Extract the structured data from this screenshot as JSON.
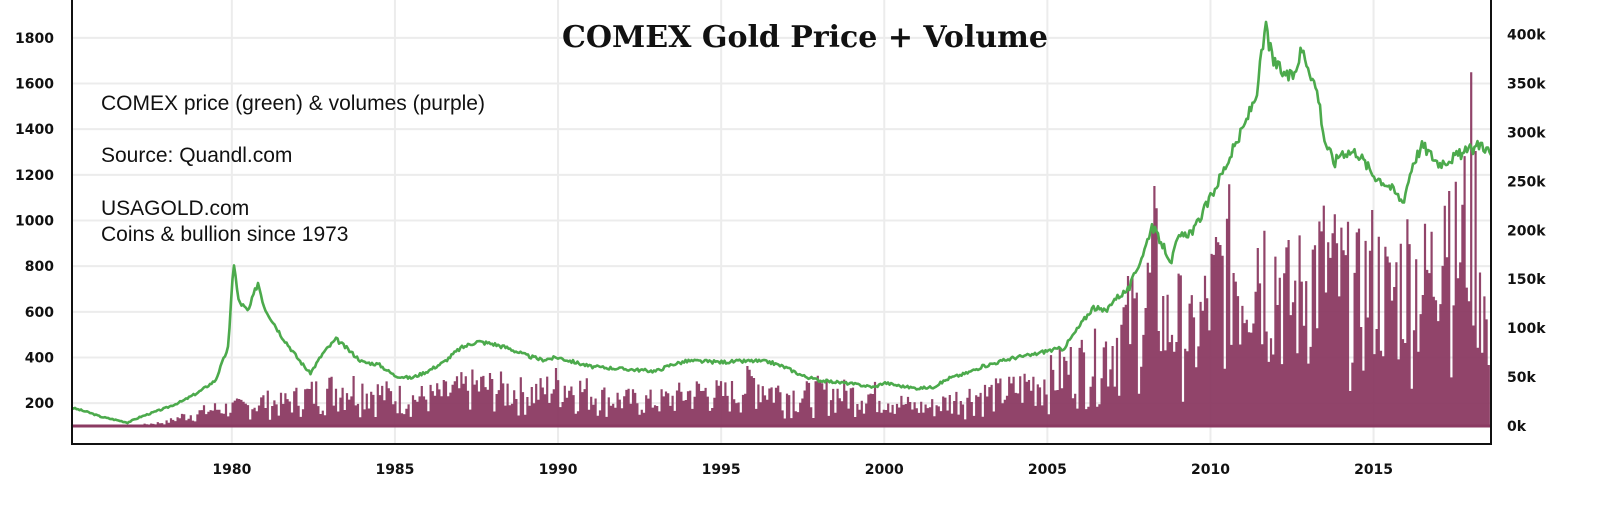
{
  "chart_data": {
    "type": "line",
    "title": "COMEX Gold Price + Volume",
    "annotations": [
      "COMEX price (green) & volumes (purple)",
      "Source:  Quandl.com",
      "USAGOLD.com",
      "Coins & bullion since 1973"
    ],
    "x_ticks": [
      "1980",
      "1985",
      "1990",
      "1995",
      "2000",
      "2005",
      "2010",
      "2015"
    ],
    "y_left_ticks": [
      "200",
      "400",
      "600",
      "800",
      "1000",
      "1200",
      "1400",
      "1600",
      "1800"
    ],
    "y_right_ticks": [
      "0k",
      "50k",
      "100k",
      "150k",
      "200k",
      "250k",
      "300k",
      "350k",
      "400k"
    ],
    "xlim": [
      1975.1,
      2018.6
    ],
    "ylim_left": [
      100,
      1900
    ],
    "ylim_right": [
      0,
      420000
    ],
    "grid": true,
    "legend": "none",
    "series": [
      {
        "color": "#4caa4c",
        "axis": "left",
        "x": [
          1975.1,
          1975.6,
          1976.0,
          1976.5,
          1976.8,
          1977.2,
          1977.6,
          1978.0,
          1978.5,
          1979.0,
          1979.5,
          1979.9,
          1980.05,
          1980.2,
          1980.5,
          1980.8,
          1981.0,
          1981.5,
          1982.0,
          1982.4,
          1982.8,
          1983.2,
          1983.6,
          1984.0,
          1984.5,
          1985.0,
          1985.5,
          1986.0,
          1986.5,
          1987.0,
          1987.5,
          1988.0,
          1988.5,
          1989.0,
          1989.5,
          1990.0,
          1990.5,
          1991.0,
          1992.0,
          1993.0,
          1993.5,
          1994.0,
          1995.0,
          1996.0,
          1996.5,
          1997.0,
          1997.5,
          1998.0,
          1999.0,
          1999.7,
          2000.0,
          2000.5,
          2001.0,
          2001.5,
          2002.0,
          2002.5,
          2003.0,
          2003.5,
          2004.0,
          2004.5,
          2005.0,
          2005.5,
          2006.0,
          2006.4,
          2006.8,
          2007.0,
          2007.5,
          2008.0,
          2008.2,
          2008.5,
          2008.8,
          2009.0,
          2009.5,
          2010.0,
          2010.5,
          2011.0,
          2011.4,
          2011.7,
          2011.9,
          2012.2,
          2012.5,
          2012.8,
          2013.0,
          2013.3,
          2013.5,
          2013.8,
          2014.0,
          2014.5,
          2015.0,
          2015.5,
          2015.9,
          2016.2,
          2016.5,
          2016.8,
          2017.0,
          2017.5,
          2018.0,
          2018.3,
          2018.6
        ],
        "values": [
          180,
          160,
          140,
          125,
          115,
          140,
          160,
          180,
          210,
          250,
          300,
          450,
          830,
          650,
          600,
          730,
          620,
          500,
          400,
          330,
          420,
          480,
          430,
          380,
          370,
          320,
          310,
          340,
          380,
          440,
          470,
          460,
          440,
          410,
          390,
          400,
          380,
          360,
          350,
          340,
          370,
          385,
          380,
          385,
          380,
          355,
          320,
          300,
          285,
          270,
          290,
          275,
          265,
          270,
          310,
          330,
          360,
          380,
          400,
          410,
          430,
          440,
          540,
          620,
          600,
          650,
          700,
          880,
          980,
          900,
          820,
          920,
          960,
          1100,
          1250,
          1400,
          1550,
          1850,
          1700,
          1650,
          1620,
          1750,
          1680,
          1550,
          1350,
          1250,
          1300,
          1300,
          1200,
          1150,
          1080,
          1250,
          1330,
          1280,
          1250,
          1280,
          1310,
          1340,
          1290
        ]
      },
      {
        "color": "#8b3a62",
        "axis": "right",
        "x": [
          1975.1,
          1976.0,
          1977.0,
          1978.0,
          1978.5,
          1979.0,
          1979.5,
          1980.0,
          1980.5,
          1981.0,
          1981.5,
          1982.0,
          1982.5,
          1983.0,
          1983.5,
          1984.0,
          1984.5,
          1985.0,
          1985.5,
          1986.0,
          1986.5,
          1987.0,
          1987.5,
          1988.0,
          1988.5,
          1989.0,
          1989.5,
          1990.0,
          1990.5,
          1991.0,
          1991.5,
          1992.0,
          1992.5,
          1993.0,
          1993.5,
          1994.0,
          1994.5,
          1995.0,
          1995.5,
          1996.0,
          1996.5,
          1997.0,
          1997.5,
          1998.0,
          1998.5,
          1999.0,
          1999.5,
          2000.0,
          2000.5,
          2001.0,
          2001.5,
          2002.0,
          2002.5,
          2003.0,
          2003.5,
          2004.0,
          2004.5,
          2005.0,
          2005.5,
          2006.0,
          2006.5,
          2007.0,
          2007.5,
          2008.0,
          2008.3,
          2008.6,
          2009.0,
          2009.5,
          2010.0,
          2010.3,
          2010.6,
          2011.0,
          2011.4,
          2011.8,
          2012.0,
          2012.5,
          2013.0,
          2013.5,
          2014.0,
          2014.5,
          2015.0,
          2015.5,
          2016.0,
          2016.5,
          2016.9,
          2017.1,
          2017.5,
          2017.8,
          2018.0,
          2018.3,
          2018.6
        ],
        "values": [
          500,
          300,
          800,
          6000,
          15000,
          20000,
          26000,
          28000,
          30000,
          38000,
          34000,
          42000,
          50000,
          55000,
          60000,
          57000,
          50000,
          45000,
          42000,
          44000,
          48000,
          55000,
          60000,
          58000,
          54000,
          50000,
          52000,
          65000,
          58000,
          50000,
          42000,
          40000,
          38000,
          38000,
          42000,
          50000,
          52000,
          48000,
          50000,
          70000,
          55000,
          50000,
          45000,
          52000,
          50000,
          48000,
          48000,
          45000,
          35000,
          28000,
          30000,
          38000,
          45000,
          48000,
          50000,
          55000,
          65000,
          70000,
          85000,
          95000,
          100000,
          125000,
          160000,
          175000,
          255000,
          150000,
          165000,
          130000,
          195000,
          230000,
          250000,
          215000,
          280000,
          230000,
          235000,
          185000,
          230000,
          245000,
          220000,
          200000,
          235000,
          190000,
          240000,
          215000,
          240000,
          410000,
          255000,
          300000,
          370000,
          240000,
          60000
        ]
      }
    ]
  }
}
